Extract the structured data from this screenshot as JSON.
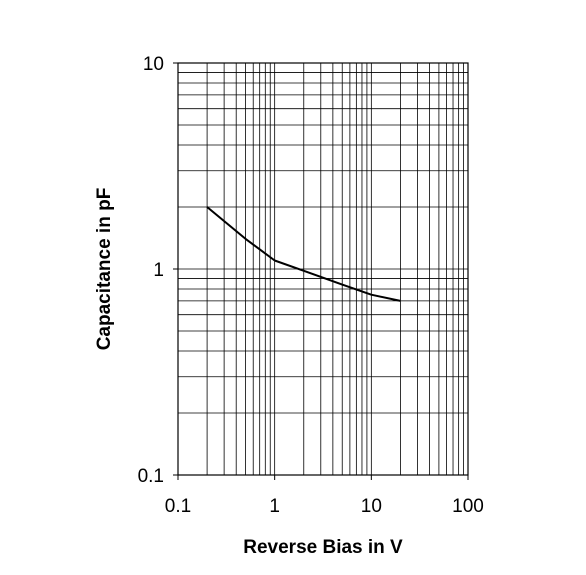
{
  "chart_data": {
    "type": "line",
    "xlabel": "Reverse Bias in V",
    "ylabel": "Capacitance in pF",
    "x_scale": "log",
    "y_scale": "log",
    "xlim": [
      0.1,
      100
    ],
    "ylim": [
      0.1,
      10
    ],
    "grid": true,
    "x_ticks": [
      "0.1",
      "1",
      "10",
      "100"
    ],
    "y_ticks": [
      "0.1",
      "1",
      "10"
    ],
    "series": [
      {
        "x": [
          0.2,
          0.5,
          1,
          2,
          5,
          10,
          20
        ],
        "y": [
          2.0,
          1.4,
          1.1,
          0.98,
          0.84,
          0.75,
          0.7
        ]
      }
    ]
  }
}
